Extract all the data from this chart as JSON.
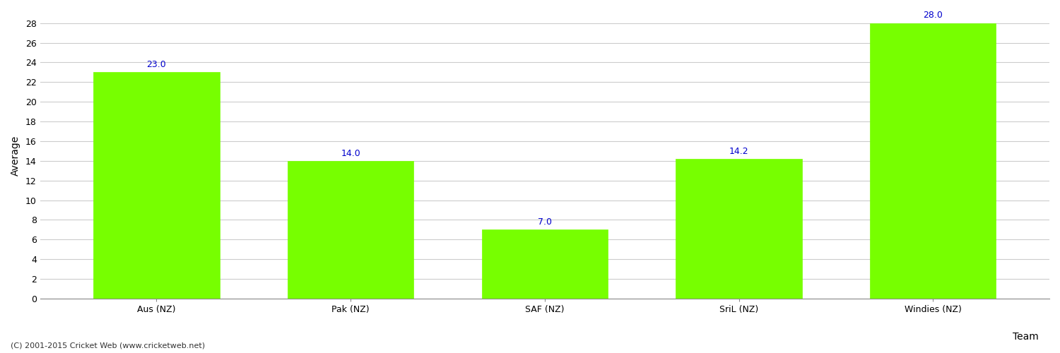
{
  "categories": [
    "Aus (NZ)",
    "Pak (NZ)",
    "SAF (NZ)",
    "SriL (NZ)",
    "Windies (NZ)"
  ],
  "values": [
    23.0,
    14.0,
    7.0,
    14.2,
    28.0
  ],
  "bar_color": "#77ff00",
  "bar_edge_color": "#77ff00",
  "xlabel": "Team",
  "ylabel": "Average",
  "ylim": [
    0,
    29
  ],
  "yticks": [
    0,
    2,
    4,
    6,
    8,
    10,
    12,
    14,
    16,
    18,
    20,
    22,
    24,
    26,
    28
  ],
  "label_color": "#0000cc",
  "label_fontsize": 9,
  "axis_fontsize": 9,
  "xlabel_fontsize": 10,
  "ylabel_fontsize": 10,
  "grid_color": "#cccccc",
  "background_color": "#ffffff",
  "footer_text": "(C) 2001-2015 Cricket Web (www.cricketweb.net)",
  "footer_fontsize": 8,
  "footer_color": "#333333"
}
